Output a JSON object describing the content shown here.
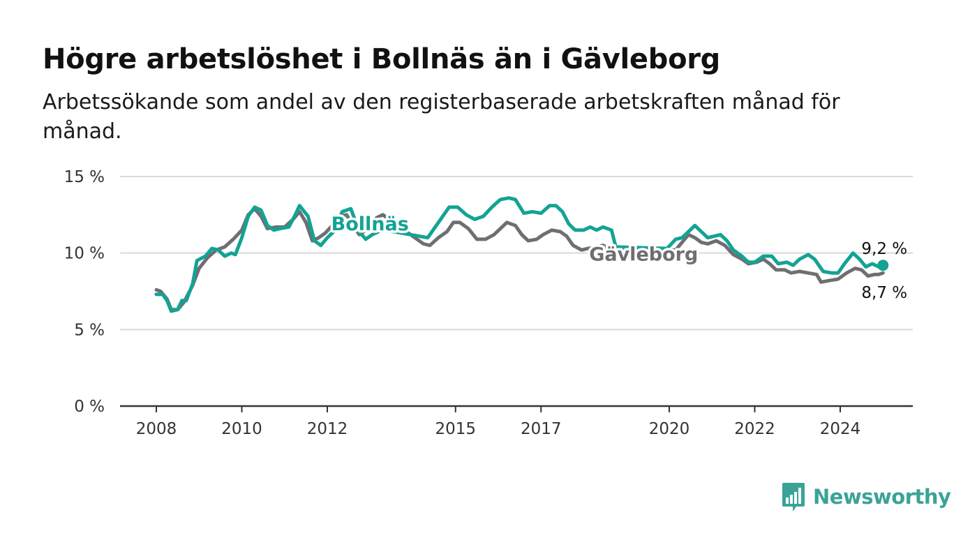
{
  "title": "Högre arbetslöshet i Bollnäs än i Gävleborg",
  "subtitle": "Arbetssökande som andel av den registerbaserade arbetskraften månad för månad.",
  "logo": {
    "name": "Newsworthy",
    "icon": "newsworthy-bar-chart-icon",
    "color": "#3aa397"
  },
  "chart_data": {
    "type": "line",
    "xlabel": "",
    "ylabel": "",
    "ylim": [
      0,
      15
    ],
    "xlim": [
      2008.0,
      2025.0
    ],
    "y_ticks": [
      0,
      5,
      10,
      15
    ],
    "y_tick_labels": [
      "0 %",
      "5 %",
      "10 %",
      "15 %"
    ],
    "x_ticks": [
      2008,
      2010,
      2012,
      2015,
      2017,
      2020,
      2022,
      2024
    ],
    "x_tick_labels": [
      "2008",
      "2010",
      "2012",
      "2015",
      "2017",
      "2020",
      "2022",
      "2024"
    ],
    "grid": "horizontal",
    "series": [
      {
        "name": "Gävleborg",
        "color": "#6f6e73",
        "end_label": "8,7 %",
        "points": [
          [
            2008.0,
            7.6
          ],
          [
            2008.1,
            7.5
          ],
          [
            2008.25,
            7.0
          ],
          [
            2008.35,
            6.3
          ],
          [
            2008.5,
            6.3
          ],
          [
            2008.65,
            6.8
          ],
          [
            2008.85,
            7.9
          ],
          [
            2009.0,
            9.0
          ],
          [
            2009.2,
            9.7
          ],
          [
            2009.4,
            10.2
          ],
          [
            2009.6,
            10.4
          ],
          [
            2009.8,
            10.9
          ],
          [
            2010.0,
            11.5
          ],
          [
            2010.15,
            12.5
          ],
          [
            2010.3,
            12.9
          ],
          [
            2010.45,
            12.4
          ],
          [
            2010.6,
            11.6
          ],
          [
            2010.8,
            11.7
          ],
          [
            2011.0,
            11.7
          ],
          [
            2011.2,
            12.2
          ],
          [
            2011.35,
            12.7
          ],
          [
            2011.5,
            12.0
          ],
          [
            2011.65,
            10.8
          ],
          [
            2011.8,
            11.0
          ],
          [
            2011.95,
            11.3
          ],
          [
            2012.15,
            11.9
          ],
          [
            2012.3,
            12.4
          ],
          [
            2012.45,
            12.5
          ],
          [
            2012.6,
            11.8
          ],
          [
            2012.75,
            11.2
          ],
          [
            2012.9,
            11.5
          ],
          [
            2013.05,
            11.7
          ],
          [
            2013.15,
            12.3
          ],
          [
            2013.3,
            12.5
          ],
          [
            2013.45,
            12.2
          ],
          [
            2014.25,
            10.6
          ],
          [
            2014.4,
            10.5
          ],
          [
            2014.6,
            11.0
          ],
          [
            2014.8,
            11.4
          ],
          [
            2014.95,
            12.0
          ],
          [
            2015.1,
            12.0
          ],
          [
            2015.3,
            11.6
          ],
          [
            2015.5,
            10.9
          ],
          [
            2015.7,
            10.9
          ],
          [
            2015.9,
            11.2
          ],
          [
            2016.05,
            11.6
          ],
          [
            2016.2,
            12.0
          ],
          [
            2016.4,
            11.8
          ],
          [
            2016.55,
            11.2
          ],
          [
            2016.7,
            10.8
          ],
          [
            2016.9,
            10.9
          ],
          [
            2017.05,
            11.2
          ],
          [
            2017.25,
            11.5
          ],
          [
            2017.45,
            11.4
          ],
          [
            2017.6,
            11.1
          ],
          [
            2017.75,
            10.5
          ],
          [
            2017.95,
            10.2
          ],
          [
            2018.1,
            10.3
          ],
          [
            2018.3,
            10.4
          ],
          [
            2018.45,
            10.5
          ],
          [
            2018.6,
            10.3
          ],
          [
            2018.75,
            10.3
          ],
          [
            2019.95,
            10.2
          ],
          [
            2020.15,
            10.2
          ],
          [
            2020.3,
            10.7
          ],
          [
            2020.45,
            11.2
          ],
          [
            2020.6,
            11.0
          ],
          [
            2020.75,
            10.7
          ],
          [
            2020.9,
            10.6
          ],
          [
            2021.1,
            10.8
          ],
          [
            2021.3,
            10.5
          ],
          [
            2021.5,
            9.9
          ],
          [
            2021.7,
            9.6
          ],
          [
            2021.85,
            9.3
          ],
          [
            2022.05,
            9.4
          ],
          [
            2022.2,
            9.6
          ],
          [
            2022.35,
            9.3
          ],
          [
            2022.5,
            8.9
          ],
          [
            2022.7,
            8.9
          ],
          [
            2022.85,
            8.7
          ],
          [
            2023.05,
            8.8
          ],
          [
            2023.25,
            8.7
          ],
          [
            2023.45,
            8.6
          ],
          [
            2023.55,
            8.1
          ],
          [
            2023.75,
            8.2
          ],
          [
            2023.95,
            8.3
          ],
          [
            2024.15,
            8.7
          ],
          [
            2024.35,
            9.0
          ],
          [
            2024.5,
            8.9
          ],
          [
            2024.65,
            8.5
          ],
          [
            2024.8,
            8.6
          ],
          [
            2024.9,
            8.6
          ],
          [
            2025.0,
            8.7
          ]
        ]
      },
      {
        "name": "Bollnäs",
        "color": "#13a394",
        "end_label": "9,2 %",
        "points": [
          [
            2008.0,
            7.3
          ],
          [
            2008.15,
            7.3
          ],
          [
            2008.25,
            6.9
          ],
          [
            2008.35,
            6.2
          ],
          [
            2008.5,
            6.3
          ],
          [
            2008.6,
            6.9
          ],
          [
            2008.7,
            6.9
          ],
          [
            2008.85,
            8.0
          ],
          [
            2008.95,
            9.5
          ],
          [
            2009.15,
            9.8
          ],
          [
            2009.3,
            10.3
          ],
          [
            2009.45,
            10.2
          ],
          [
            2009.6,
            9.8
          ],
          [
            2009.75,
            10.0
          ],
          [
            2009.85,
            9.9
          ],
          [
            2010.0,
            11.0
          ],
          [
            2010.15,
            12.4
          ],
          [
            2010.3,
            13.0
          ],
          [
            2010.45,
            12.8
          ],
          [
            2010.6,
            11.8
          ],
          [
            2010.75,
            11.5
          ],
          [
            2010.9,
            11.6
          ],
          [
            2011.1,
            11.7
          ],
          [
            2011.25,
            12.5
          ],
          [
            2011.35,
            13.1
          ],
          [
            2011.55,
            12.4
          ],
          [
            2011.7,
            10.8
          ],
          [
            2011.85,
            10.5
          ],
          [
            2012.0,
            11.0
          ],
          [
            2012.15,
            11.4
          ],
          [
            2012.35,
            12.7
          ],
          [
            2012.55,
            12.9
          ],
          [
            2012.75,
            11.4
          ],
          [
            2012.9,
            10.9
          ],
          [
            2013.05,
            11.2
          ],
          [
            2013.2,
            11.4
          ],
          [
            2013.35,
            11.5
          ],
          [
            2014.35,
            11.0
          ],
          [
            2014.5,
            11.6
          ],
          [
            2014.7,
            12.4
          ],
          [
            2014.85,
            13.0
          ],
          [
            2015.05,
            13.0
          ],
          [
            2015.25,
            12.5
          ],
          [
            2015.45,
            12.2
          ],
          [
            2015.65,
            12.4
          ],
          [
            2015.85,
            13.0
          ],
          [
            2016.05,
            13.5
          ],
          [
            2016.25,
            13.6
          ],
          [
            2016.4,
            13.5
          ],
          [
            2016.6,
            12.6
          ],
          [
            2016.8,
            12.7
          ],
          [
            2017.0,
            12.6
          ],
          [
            2017.2,
            13.1
          ],
          [
            2017.35,
            13.1
          ],
          [
            2017.5,
            12.7
          ],
          [
            2017.65,
            11.9
          ],
          [
            2017.8,
            11.5
          ],
          [
            2018.0,
            11.5
          ],
          [
            2018.15,
            11.7
          ],
          [
            2018.3,
            11.5
          ],
          [
            2018.45,
            11.7
          ],
          [
            2018.65,
            11.5
          ],
          [
            2018.75,
            10.4
          ],
          [
            2019.95,
            10.3
          ],
          [
            2020.15,
            10.9
          ],
          [
            2020.3,
            11.0
          ],
          [
            2020.45,
            11.4
          ],
          [
            2020.6,
            11.8
          ],
          [
            2020.75,
            11.4
          ],
          [
            2020.9,
            11.0
          ],
          [
            2021.05,
            11.1
          ],
          [
            2021.2,
            11.2
          ],
          [
            2021.35,
            10.8
          ],
          [
            2021.5,
            10.2
          ],
          [
            2021.7,
            9.8
          ],
          [
            2021.85,
            9.4
          ],
          [
            2022.0,
            9.4
          ],
          [
            2022.2,
            9.8
          ],
          [
            2022.4,
            9.8
          ],
          [
            2022.55,
            9.3
          ],
          [
            2022.75,
            9.4
          ],
          [
            2022.9,
            9.2
          ],
          [
            2023.05,
            9.6
          ],
          [
            2023.25,
            9.9
          ],
          [
            2023.4,
            9.6
          ],
          [
            2023.6,
            8.8
          ],
          [
            2023.8,
            8.7
          ],
          [
            2023.95,
            8.7
          ],
          [
            2024.1,
            9.3
          ],
          [
            2024.3,
            10.0
          ],
          [
            2024.45,
            9.6
          ],
          [
            2024.6,
            9.1
          ],
          [
            2024.75,
            9.3
          ],
          [
            2024.9,
            9.1
          ],
          [
            2025.0,
            9.2
          ]
        ]
      }
    ],
    "annotations": [
      {
        "text": "Bollnäs",
        "series": "Bollnäs",
        "x": 2013.0,
        "y": 11.5
      },
      {
        "text": "Gävleborg",
        "series": "Gävleborg",
        "x": 2019.4,
        "y": 9.5
      }
    ]
  }
}
